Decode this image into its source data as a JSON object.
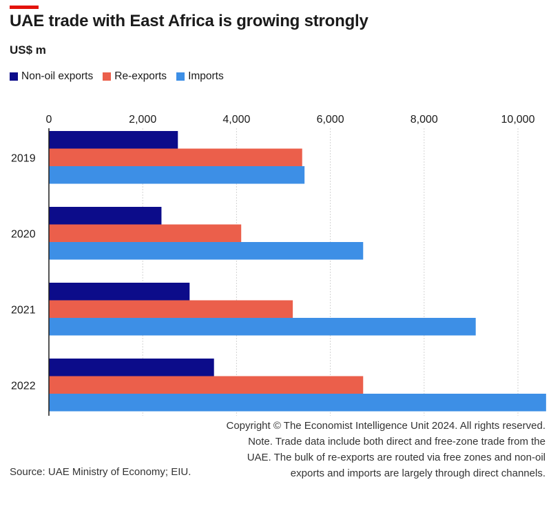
{
  "accent_color": "#e3120b",
  "chart_data": {
    "type": "bar",
    "orientation": "horizontal",
    "title": "UAE trade with East Africa is growing strongly",
    "ylabel": "US$ m",
    "categories": [
      "2019",
      "2020",
      "2021",
      "2022"
    ],
    "series": [
      {
        "name": "Non-oil exports",
        "color": "#0c0c8a",
        "values": [
          2750,
          2400,
          3000,
          3520
        ]
      },
      {
        "name": "Re-exports",
        "color": "#eb5f4b",
        "values": [
          5400,
          4100,
          5200,
          6700
        ]
      },
      {
        "name": "Imports",
        "color": "#3d8fe6",
        "values": [
          5450,
          6700,
          9100,
          10600
        ]
      }
    ],
    "xlim": [
      0,
      10600
    ],
    "xticks": [
      0,
      2000,
      4000,
      6000,
      8000,
      10000
    ],
    "xtick_labels": [
      "0",
      "2,000",
      "4,000",
      "6,000",
      "8,000",
      "10,000"
    ],
    "grid": true,
    "legend": "top-left"
  },
  "notes": {
    "copyright": "Copyright © The Economist Intelligence Unit 2024. All rights reserved.",
    "note": "Note. Trade data include both direct and free-zone trade from the UAE. The bulk of re-exports are routed via free zones and non-oil exports and imports are largely through direct channels."
  },
  "source": "Source: UAE Ministry of Economy; EIU."
}
